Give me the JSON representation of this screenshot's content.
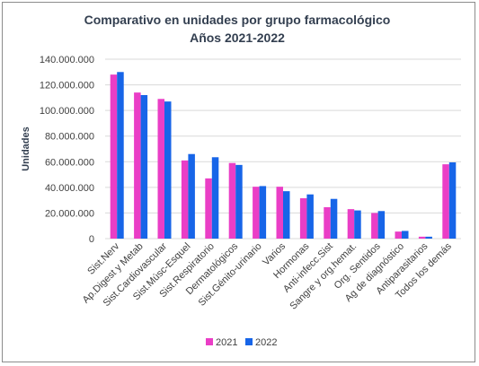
{
  "chart_data": {
    "type": "bar",
    "title": "Comparativo en unidades por grupo farmacológico",
    "subtitle": "Años 2021-2022",
    "xlabel": "",
    "ylabel": "Unidades",
    "ylim": [
      0,
      140000000
    ],
    "ytick_values": [
      0,
      20000000,
      40000000,
      60000000,
      80000000,
      100000000,
      120000000,
      140000000
    ],
    "ytick_labels": [
      "0",
      "20.000.000",
      "40.000.000",
      "60.000.000",
      "80.000.000",
      "100.000.000",
      "120.000.000",
      "140.000.000"
    ],
    "grid": true,
    "legend_position": "bottom",
    "categories": [
      "Sist.Nerv",
      "Ap.Digest y Metab",
      "Sist.Cardiovascular",
      "Sist.Músc-Esquel",
      "Sist.Respiratorio",
      "Dermatológicos",
      "Sist.Génito-urinario",
      "Varios",
      "Hormonas",
      "Anti-infecc.Sist",
      "Sangre y org.hemat.",
      "Org. Sentidos",
      "Ag de diagnóstico",
      "Antiparasitarios",
      "Todos los demás"
    ],
    "series": [
      {
        "name": "2021",
        "color": "#ea3ec6",
        "values": [
          128000000,
          114000000,
          109000000,
          61000000,
          47000000,
          59000000,
          40500000,
          40500000,
          31500000,
          24500000,
          23000000,
          20000000,
          5500000,
          1500000,
          58000000
        ]
      },
      {
        "name": "2022",
        "color": "#1765e8",
        "values": [
          130000000,
          112000000,
          107000000,
          66000000,
          63500000,
          57500000,
          41000000,
          37000000,
          34500000,
          31000000,
          22000000,
          21500000,
          6000000,
          1500000,
          59500000
        ]
      }
    ]
  }
}
